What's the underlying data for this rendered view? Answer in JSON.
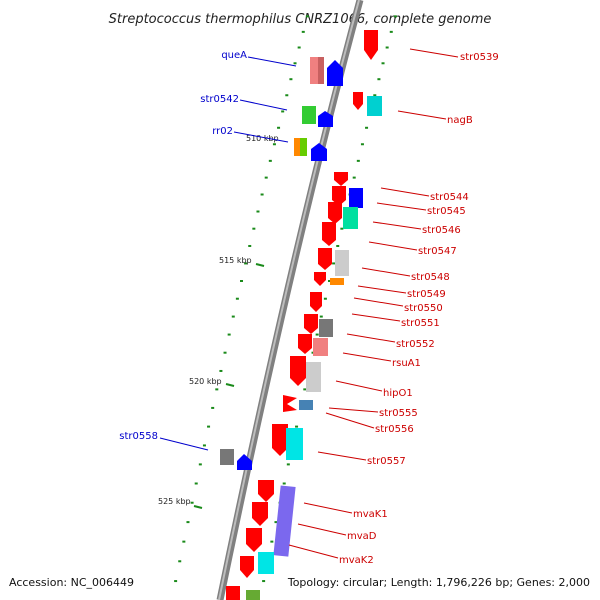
{
  "title": "Streptococcus thermophilus CNRZ1066, complete genome",
  "accession": "Accession: NC_006449",
  "topology": "Topology: circular; Length: 1,796,226 bp; Genes: 2,000",
  "colors": {
    "forward_label": "#0000cc",
    "reverse_label": "#cc0000",
    "backbone": "#808080",
    "tick": "#1a8a1a"
  },
  "kbp_marks": [
    "510 kbp",
    "515 kbp",
    "520 kbp",
    "525 kbp"
  ],
  "forward_genes": [
    {
      "label": "queA",
      "colors": [
        "#f08080",
        "#0000ff"
      ]
    },
    {
      "label": "str0542",
      "colors": [
        "#33cc33",
        "#0000ff"
      ]
    },
    {
      "label": "rr02",
      "colors": [
        "#ff8800",
        "#66cc00",
        "#0000ff"
      ]
    },
    {
      "label": "str0558",
      "colors": [
        "#777777",
        "#0000ff"
      ]
    }
  ],
  "reverse_genes": [
    {
      "label": "str0539",
      "color": "#ff0000"
    },
    {
      "label": "nagB",
      "color": "#00d0d0"
    },
    {
      "label": "str0544",
      "color": "#0000ff"
    },
    {
      "label": "str0545",
      "color": "#00e0a0"
    },
    {
      "label": "str0546",
      "color": "#ff0000"
    },
    {
      "label": "str0547",
      "color": "#cccccc"
    },
    {
      "label": "str0548",
      "color": "#ff0000"
    },
    {
      "label": "str0549",
      "color": "#ff8800"
    },
    {
      "label": "str0550",
      "color": "#ff0000"
    },
    {
      "label": "str0551",
      "color": "#777777"
    },
    {
      "label": "str0552",
      "color": "#f08080"
    },
    {
      "label": "rsuA1",
      "color": "#cccccc"
    },
    {
      "label": "hipO1",
      "color": "#ff0000"
    },
    {
      "label": "str0555",
      "color": "#4682b4"
    },
    {
      "label": "str0556",
      "color": "#ff0000"
    },
    {
      "label": "str0557",
      "color": "#00e5e5"
    },
    {
      "label": "mvaK1",
      "color": "#7b68ee"
    },
    {
      "label": "mvaD",
      "color": "#ff0000"
    },
    {
      "label": "mvaK2",
      "color": "#00e5e5"
    }
  ]
}
